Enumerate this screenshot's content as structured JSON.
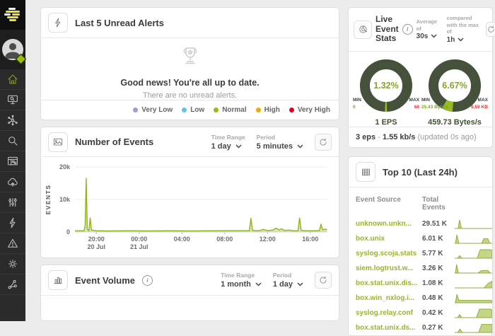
{
  "colors": {
    "accent": "#97be0d",
    "chart_line": "#8cb41c",
    "chart_fill": "#97be26",
    "donut_ring": "#46513c",
    "donut_slice": "#96bc22",
    "spark_stroke": "#8fae3c",
    "spark_fill": "#c3d685"
  },
  "sidebar": {
    "nav_icons": [
      "home",
      "search-console",
      "network-hub",
      "search",
      "dashboard",
      "cloud-upload",
      "filters",
      "alerts",
      "incidents",
      "settings",
      "share"
    ],
    "active_icon": "home"
  },
  "alerts_panel": {
    "title": "Last 5 Unread Alerts",
    "empty_title": "Good news! You're all up to date.",
    "empty_subtitle": "There are no unread alerts.",
    "legend": [
      {
        "label": "Very Low",
        "color": "#a79ad1"
      },
      {
        "label": "Low",
        "color": "#5fc3ee"
      },
      {
        "label": "Normal",
        "color": "#97be0d"
      },
      {
        "label": "High",
        "color": "#f0ad00"
      },
      {
        "label": "Very High",
        "color": "#e2001a"
      }
    ]
  },
  "events_panel": {
    "title": "Number of Events",
    "time_range_label": "Time Range",
    "time_range_value": "1 day",
    "period_label": "Period",
    "period_value": "5 minutes"
  },
  "volume_panel": {
    "title": "Event Volume",
    "time_range_label": "Time Range",
    "time_range_value": "1 month",
    "period_label": "Period",
    "period_value": "1 day"
  },
  "live_panel": {
    "title": "Live Event Stats",
    "average_label": "Average of",
    "average_value": "30s",
    "compare_label": "compared with the max of",
    "compare_value": "1h",
    "gauges": [
      {
        "percent_text": "1.32%",
        "percent": 1.32,
        "min_label": "MIN",
        "max_label": "MAX",
        "min_value": "0",
        "max_value": "68",
        "caption": "1 EPS",
        "slice_start_deg": 88
      },
      {
        "percent_text": "6.67%",
        "percent": 6.67,
        "min_label": "MIN",
        "max_label": "MAX",
        "min_value": "25.43 Byte/s",
        "max_value": "6.59 KB",
        "caption": "459.73 Bytes/s",
        "slice_start_deg": 95
      }
    ],
    "footer_eps": "3 eps",
    "footer_sep": "-",
    "footer_rate": "1.55 kb/s",
    "footer_updated": "(updated 0s ago)"
  },
  "top10_panel": {
    "title": "Top 10 (Last 24h)",
    "columns": [
      "Event Source",
      "Total Events"
    ],
    "rows": [
      {
        "source": "unknown.unkn...",
        "value": "29.51 K",
        "spark": [
          [
            0,
            0
          ],
          [
            0.09,
            0
          ],
          [
            0.13,
            1
          ],
          [
            0.18,
            0
          ],
          [
            1,
            0
          ]
        ]
      },
      {
        "source": "box.unix",
        "value": "6.01 K",
        "spark": [
          [
            0,
            0
          ],
          [
            0.02,
            0
          ],
          [
            0.06,
            1
          ],
          [
            0.11,
            0
          ],
          [
            0.72,
            0
          ],
          [
            0.78,
            0.55
          ],
          [
            0.88,
            0.55
          ],
          [
            0.94,
            0
          ],
          [
            1,
            0
          ]
        ]
      },
      {
        "source": "syslog.scoja.stats",
        "value": "5.77 K",
        "spark": [
          [
            0,
            0
          ],
          [
            0.08,
            0
          ],
          [
            0.13,
            0.3
          ],
          [
            0.19,
            0
          ],
          [
            0.6,
            0
          ],
          [
            0.68,
            1
          ],
          [
            0.97,
            1
          ],
          [
            1,
            0.85
          ]
        ]
      },
      {
        "source": "siem.logtrust.w...",
        "value": "3.26 K",
        "spark": [
          [
            0,
            0
          ],
          [
            0.02,
            0
          ],
          [
            0.05,
            1
          ],
          [
            0.1,
            0
          ],
          [
            0.62,
            0
          ],
          [
            0.72,
            0.3
          ],
          [
            0.88,
            0.3
          ],
          [
            0.95,
            0
          ],
          [
            1,
            0
          ]
        ]
      },
      {
        "source": "box.stat.unix.dis...",
        "value": "1.08 K",
        "spark": [
          [
            0,
            0
          ],
          [
            0.78,
            0
          ],
          [
            0.9,
            0.55
          ],
          [
            1,
            0.8
          ]
        ]
      },
      {
        "source": "box.win_nxlog.i...",
        "value": "0.48 K",
        "spark": [
          [
            0,
            0
          ],
          [
            0.02,
            0
          ],
          [
            0.06,
            1
          ],
          [
            0.11,
            0.28
          ],
          [
            0.97,
            0.28
          ],
          [
            1,
            0.24
          ]
        ]
      },
      {
        "source": "syslog.relay.conf",
        "value": "0.42 K",
        "spark": [
          [
            0,
            0
          ],
          [
            0.08,
            0
          ],
          [
            0.13,
            0.35
          ],
          [
            0.19,
            0
          ],
          [
            0.58,
            0
          ],
          [
            0.66,
            1
          ],
          [
            0.97,
            1
          ],
          [
            1,
            0.8
          ]
        ]
      },
      {
        "source": "box.stat.unix.ds...",
        "value": "0.27 K",
        "spark": [
          [
            0,
            0
          ],
          [
            0.08,
            0
          ],
          [
            0.14,
            0.4
          ],
          [
            0.2,
            0
          ],
          [
            0.64,
            0
          ],
          [
            0.72,
            0.95
          ],
          [
            1,
            0.95
          ]
        ]
      }
    ]
  },
  "chart_data": {
    "type": "area",
    "title": "Number of Events",
    "ylabel": "EVENTS",
    "ylim": [
      0,
      20000
    ],
    "yticks": [
      {
        "value": 0,
        "label": "0"
      },
      {
        "value": 10000,
        "label": "10k"
      },
      {
        "value": 20000,
        "label": "20k"
      }
    ],
    "xlim": [
      0,
      23.6
    ],
    "xticks": [
      {
        "pos": 2,
        "label": "20:00",
        "sublabel": "20 Jul"
      },
      {
        "pos": 6,
        "label": "00:00",
        "sublabel": "21 Jul"
      },
      {
        "pos": 10,
        "label": "04:00"
      },
      {
        "pos": 14,
        "label": "08:00"
      },
      {
        "pos": 18,
        "label": "12:00"
      },
      {
        "pos": 22,
        "label": "16:00"
      }
    ],
    "grid": true,
    "legend_position": "none",
    "series": [
      {
        "name": "events",
        "points": [
          [
            0,
            400
          ],
          [
            0.85,
            400
          ],
          [
            0.95,
            2000
          ],
          [
            1.05,
            16500
          ],
          [
            1.15,
            900
          ],
          [
            1.3,
            400
          ],
          [
            1.42,
            4300
          ],
          [
            1.55,
            600
          ],
          [
            2,
            400
          ],
          [
            3,
            350
          ],
          [
            5,
            400
          ],
          [
            7,
            350
          ],
          [
            9,
            400
          ],
          [
            11,
            350
          ],
          [
            13,
            400
          ],
          [
            15,
            420
          ],
          [
            16.3,
            420
          ],
          [
            16.45,
            4200
          ],
          [
            16.6,
            500
          ],
          [
            17.2,
            400
          ],
          [
            17.6,
            800
          ],
          [
            18,
            450
          ],
          [
            18.5,
            600
          ],
          [
            18.8,
            1200
          ],
          [
            19.1,
            600
          ],
          [
            19.3,
            1000
          ],
          [
            19.6,
            450
          ],
          [
            20,
            600
          ],
          [
            20.4,
            400
          ],
          [
            20.85,
            400
          ],
          [
            21,
            4300
          ],
          [
            21.15,
            500
          ],
          [
            21.6,
            400
          ],
          [
            22.2,
            400
          ],
          [
            22.85,
            450
          ],
          [
            23,
            2400
          ],
          [
            23.15,
            700
          ],
          [
            23.4,
            900
          ],
          [
            23.55,
            700
          ]
        ]
      }
    ]
  }
}
